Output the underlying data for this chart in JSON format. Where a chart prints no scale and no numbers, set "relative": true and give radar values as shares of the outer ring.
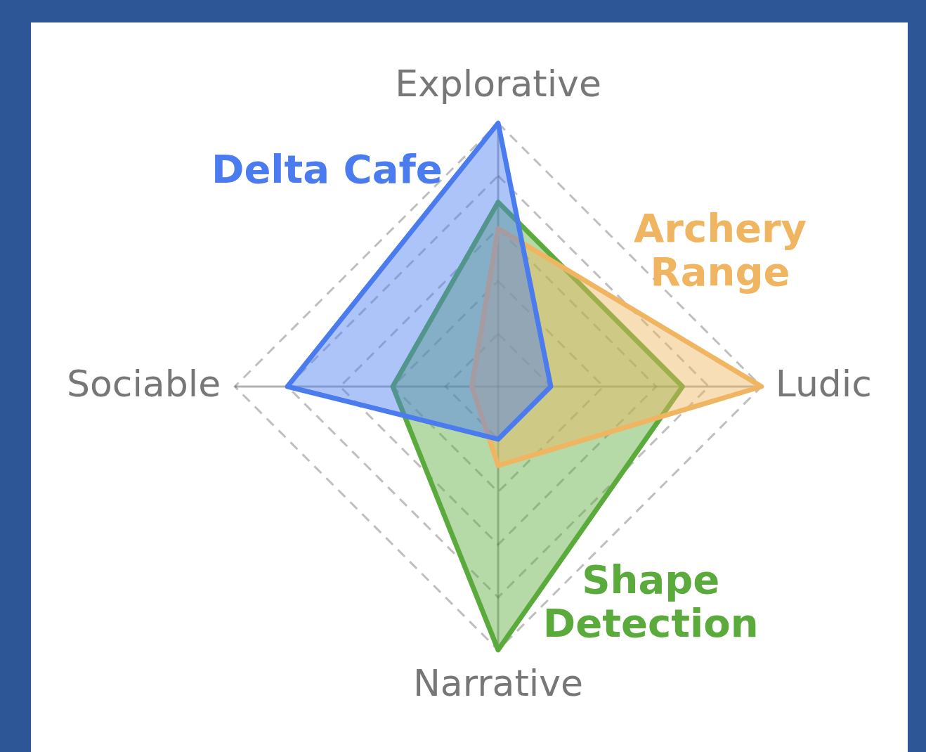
{
  "chart_data": {
    "type": "radar",
    "relative": true,
    "categories": [
      "Explorative",
      "Ludic",
      "Narrative",
      "Sociable"
    ],
    "series": [
      {
        "name": "Delta Cafe",
        "color": "#4a7cf0",
        "values": [
          1.0,
          0.2,
          0.2,
          0.8
        ]
      },
      {
        "name": "Archery Range",
        "color": "#f0b560",
        "values": [
          0.6,
          1.0,
          0.3,
          0.1
        ]
      },
      {
        "name": "Shape Detection",
        "color": "#5aaa3c",
        "values": [
          0.7,
          0.7,
          1.0,
          0.4
        ]
      }
    ],
    "legend": false,
    "grid": true
  }
}
